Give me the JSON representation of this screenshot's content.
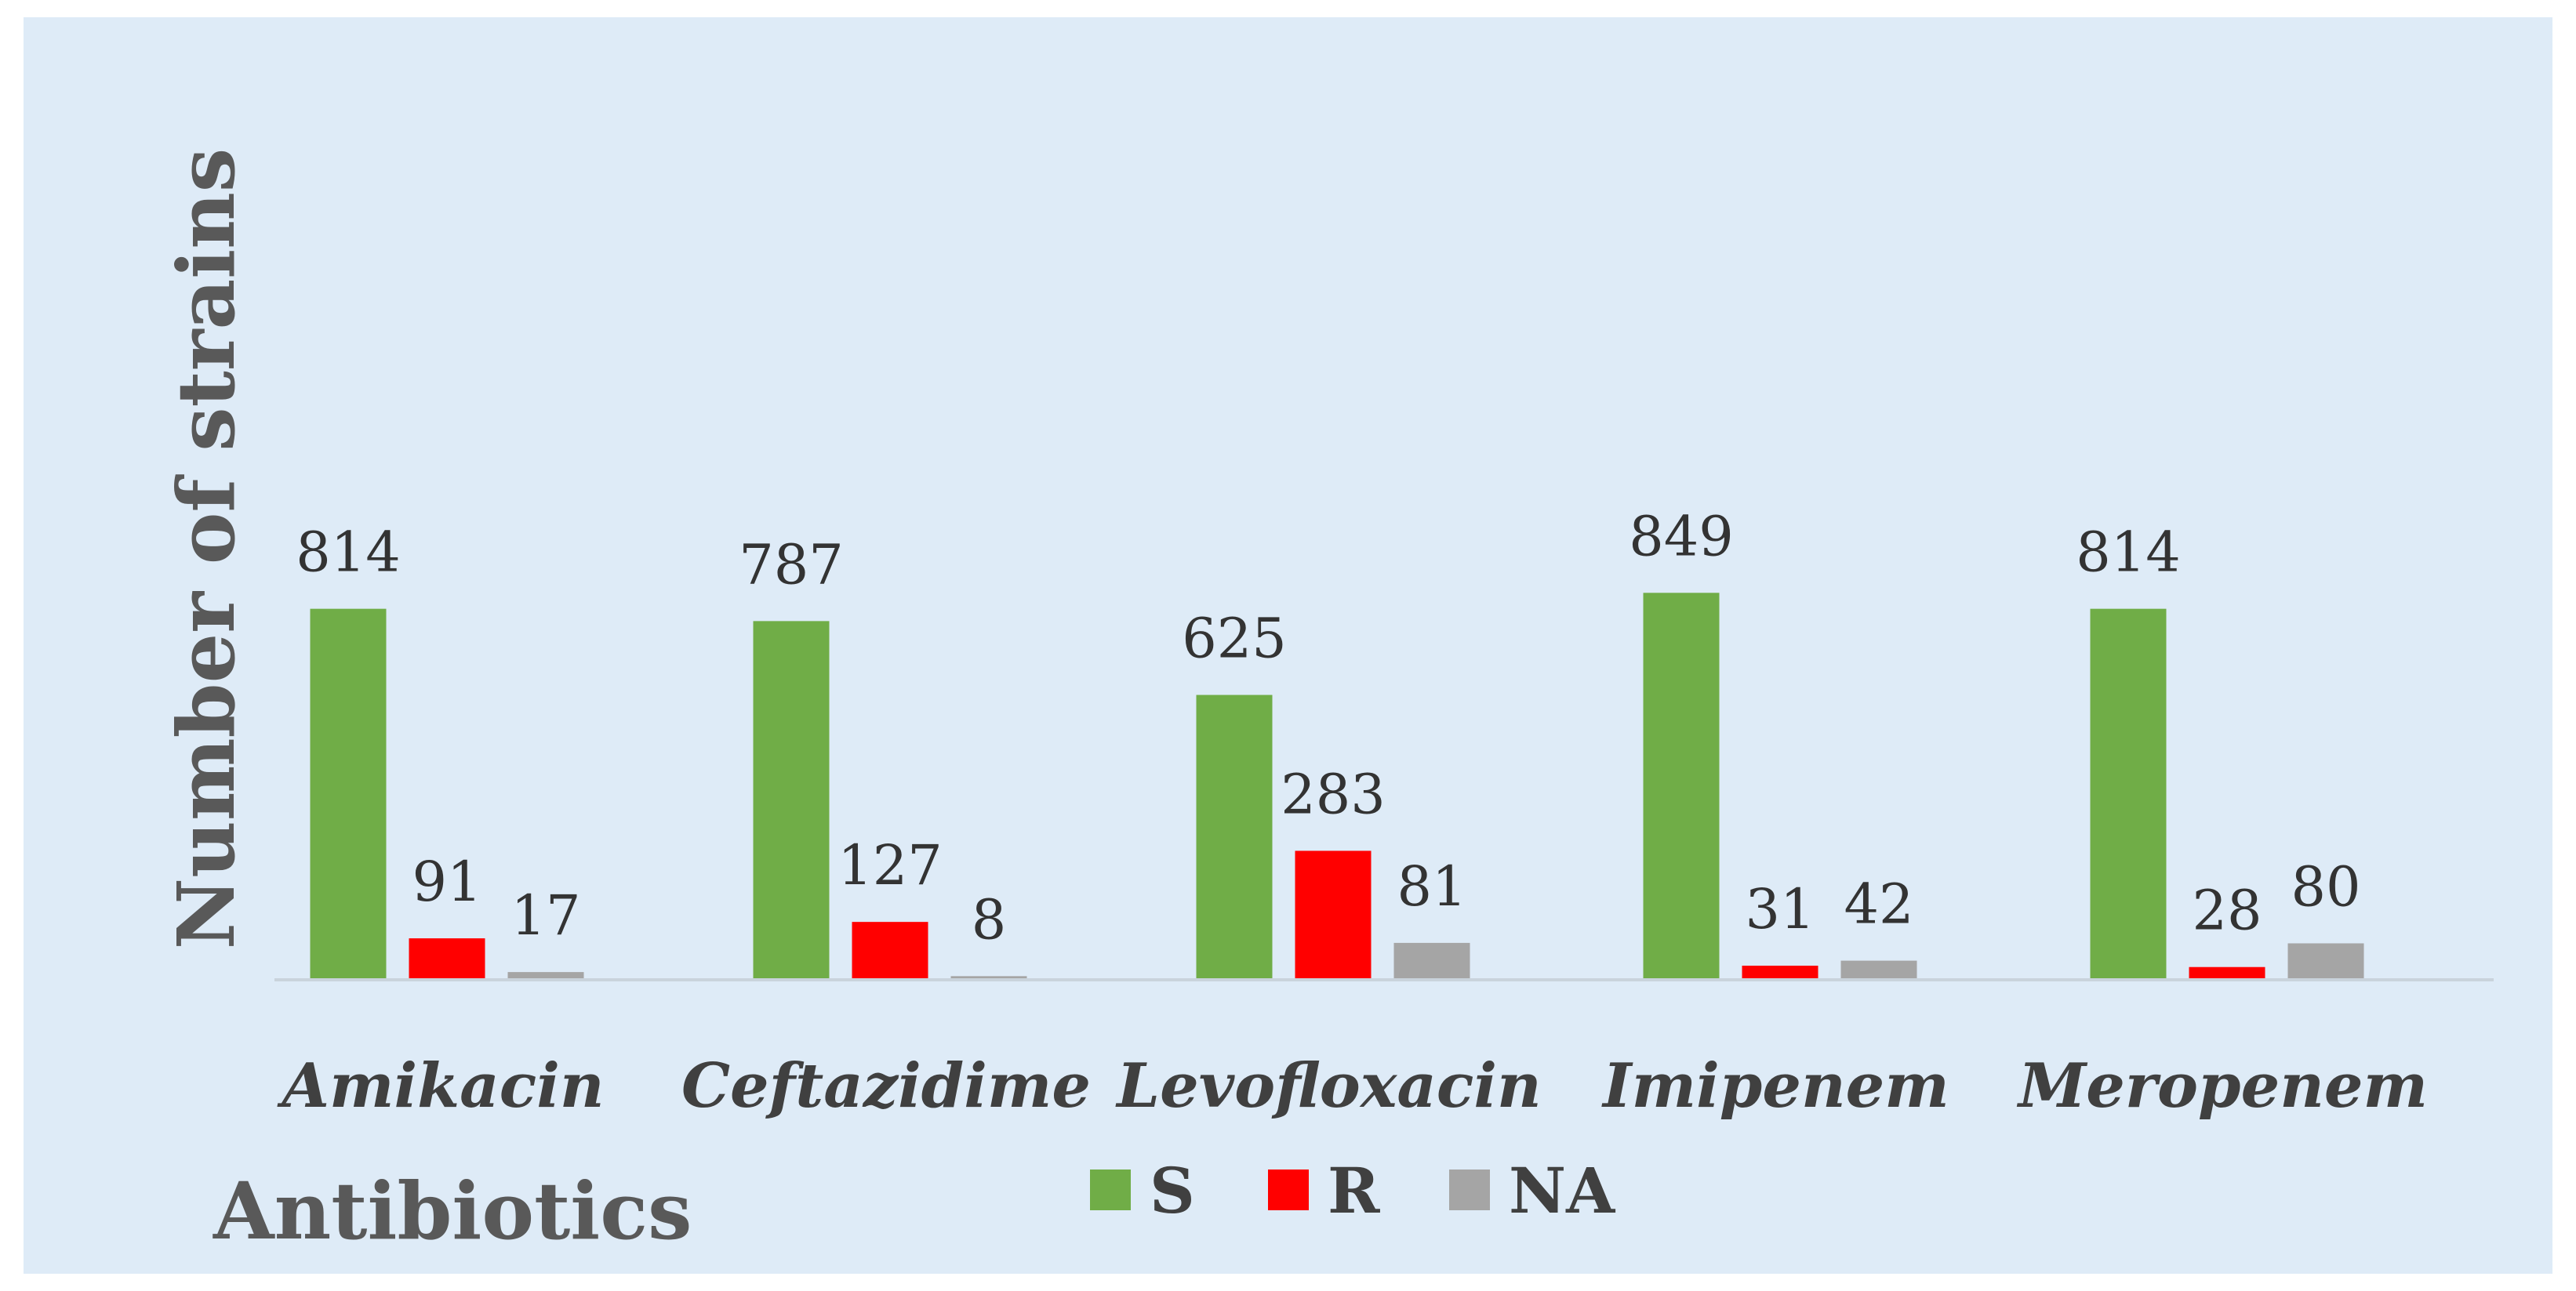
{
  "chart_data": {
    "type": "bar",
    "title": "",
    "xlabel": "Antibiotics",
    "ylabel": "Number of strains",
    "categories": [
      "Amikacin",
      "Ceftazidime",
      "Levofloxacin",
      "Imipenem",
      "Meropenem"
    ],
    "series": [
      {
        "name": "S",
        "color": "#70AD47",
        "values": [
          814,
          787,
          625,
          849,
          814
        ]
      },
      {
        "name": "R",
        "color": "#FF0000",
        "values": [
          91,
          127,
          283,
          31,
          28
        ]
      },
      {
        "name": "NA",
        "color": "#A5A5A5",
        "values": [
          17,
          8,
          81,
          42,
          80
        ]
      }
    ],
    "ylim": [
      0,
      900
    ],
    "grid": false,
    "legend_position": "bottom-center",
    "background_color": "#DEEBF7"
  }
}
